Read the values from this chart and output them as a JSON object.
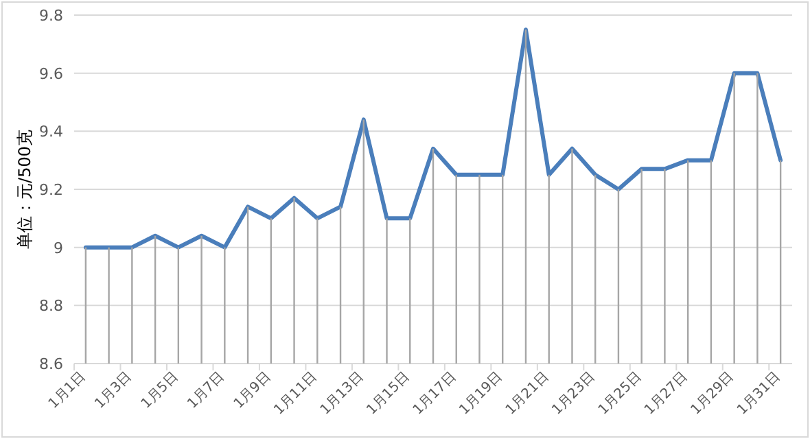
{
  "chart_data": {
    "type": "line",
    "ylabel": "单位：元/500克",
    "categories": [
      "1月1日",
      null,
      "1月3日",
      null,
      "1月5日",
      null,
      "1月7日",
      null,
      "1月9日",
      null,
      "1月11日",
      null,
      "1月13日",
      null,
      "1月15日",
      null,
      "1月17日",
      null,
      "1月19日",
      null,
      "1月21日",
      null,
      "1月23日",
      null,
      "1月25日",
      null,
      "1月27日",
      null,
      "1月29日",
      null,
      "1月31日"
    ],
    "series": [
      {
        "type": "bar",
        "color": "#a6a6a6",
        "values": [
          9.0,
          9.0,
          9.0,
          9.04,
          9.0,
          9.04,
          9.0,
          9.14,
          9.1,
          9.17,
          9.1,
          9.14,
          9.44,
          9.1,
          9.1,
          9.34,
          9.25,
          9.25,
          9.25,
          9.75,
          9.25,
          9.34,
          9.25,
          9.2,
          9.27,
          9.27,
          9.3,
          9.3,
          9.6,
          9.6,
          9.3
        ]
      },
      {
        "color": "#4a7ebb",
        "values": [
          9.0,
          9.0,
          9.0,
          9.04,
          9.0,
          9.04,
          9.0,
          9.14,
          9.1,
          9.17,
          9.1,
          9.14,
          9.44,
          9.1,
          9.1,
          9.34,
          9.25,
          9.25,
          9.25,
          9.75,
          9.25,
          9.34,
          9.25,
          9.2,
          9.27,
          9.27,
          9.3,
          9.3,
          9.6,
          9.6,
          9.3
        ]
      }
    ],
    "ylim": [
      8.6,
      9.8
    ],
    "yticks": [
      8.6,
      8.8,
      9,
      9.2,
      9.4,
      9.6,
      9.8
    ],
    "grid": "y"
  }
}
